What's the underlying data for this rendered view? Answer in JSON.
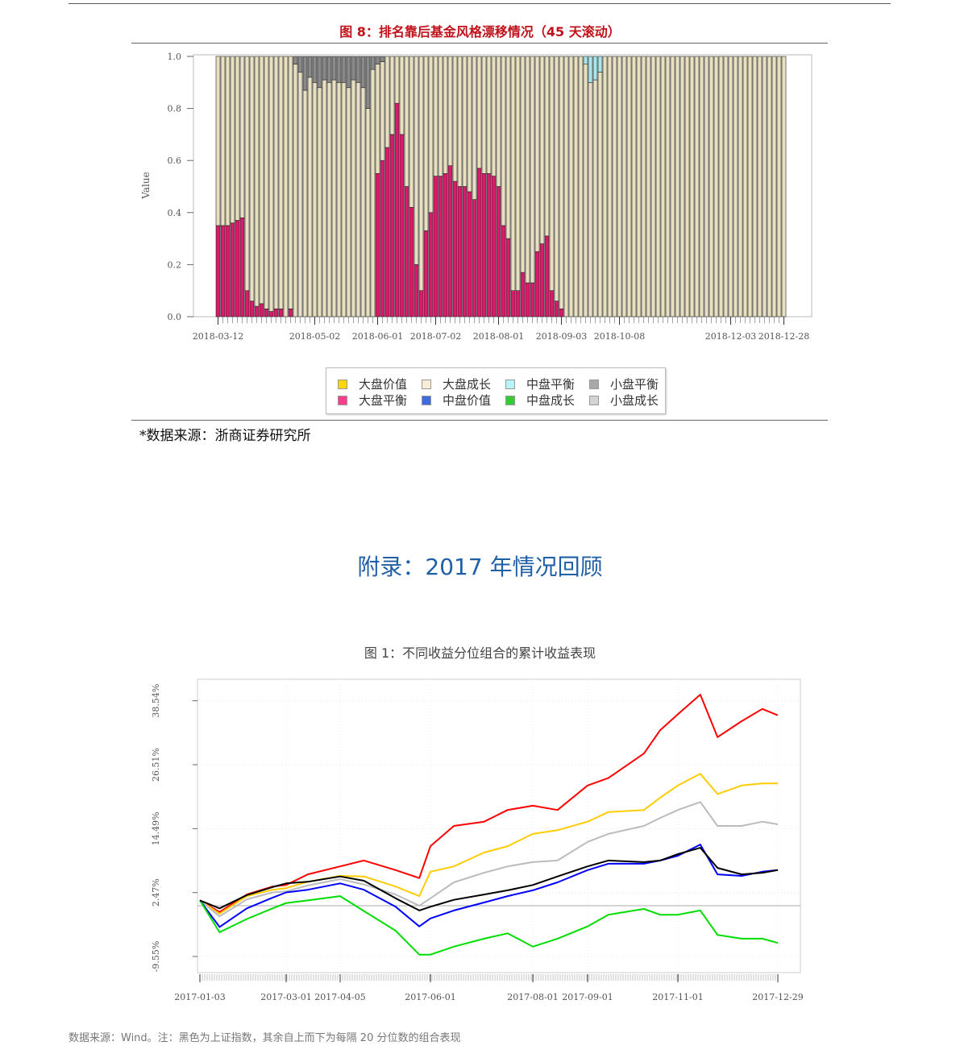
{
  "figure8": {
    "title": "图 8：排名靠后基金风格漂移情况（45 天滚动）",
    "source": "*数据来源：浙商证券研究所",
    "legend": [
      {
        "label": "大盘价值",
        "color": "#ffd700"
      },
      {
        "label": "大盘成长",
        "color": "#faebd7"
      },
      {
        "label": "中盘平衡",
        "color": "#b4f5f5"
      },
      {
        "label": "小盘平衡",
        "color": "#a9a9a9"
      },
      {
        "label": "大盘平衡",
        "color": "#ff3d8b"
      },
      {
        "label": "中盘价值",
        "color": "#4169e1"
      },
      {
        "label": "中盘成长",
        "color": "#32cd32"
      },
      {
        "label": "小盘成长",
        "color": "#d3d3d3"
      }
    ]
  },
  "chart_data": [
    {
      "type": "bar",
      "stacked": true,
      "ylabel": "Value",
      "ylim": [
        0,
        1
      ],
      "y_ticks": [
        "0.0",
        "0.2",
        "0.4",
        "0.6",
        "0.8",
        "1.0"
      ],
      "x_ticks": [
        {
          "label": "2018-03-12",
          "bar": 0
        },
        {
          "label": "2018-05-02",
          "bar": 20
        },
        {
          "label": "2018-06-01",
          "bar": 33
        },
        {
          "label": "2018-07-02",
          "bar": 45
        },
        {
          "label": "2018-08-01",
          "bar": 58
        },
        {
          "label": "2018-09-03",
          "bar": 71
        },
        {
          "label": "2018-10-08",
          "bar": 83
        },
        {
          "label": "2018-12-03",
          "bar": 106
        },
        {
          "label": "2018-12-28",
          "bar": 117
        }
      ],
      "series": [
        {
          "name": "大盘平衡",
          "color": "#d81b6a",
          "values": [
            0.35,
            0.35,
            0.35,
            0.36,
            0.37,
            0.38,
            0.1,
            0.06,
            0.04,
            0.05,
            0.03,
            0.02,
            0.03,
            0.03,
            0,
            0.03,
            0,
            0,
            0,
            0,
            0,
            0,
            0,
            0,
            0,
            0,
            0,
            0,
            0,
            0,
            0,
            0,
            0,
            0.55,
            0.6,
            0.65,
            0.7,
            0.82,
            0.7,
            0.5,
            0.42,
            0.2,
            0.1,
            0.33,
            0.4,
            0.54,
            0.54,
            0.55,
            0.58,
            0.52,
            0.5,
            0.5,
            0.48,
            0.45,
            0.57,
            0.55,
            0.55,
            0.54,
            0.5,
            0.35,
            0.3,
            0.1,
            0.1,
            0.17,
            0.13,
            0.13,
            0.25,
            0.28,
            0.31,
            0.1,
            0.06,
            0.03,
            0,
            0,
            0,
            0,
            0,
            0,
            0,
            0,
            0,
            0,
            0,
            0,
            0,
            0,
            0,
            0,
            0,
            0,
            0,
            0,
            0,
            0,
            0,
            0,
            0,
            0,
            0,
            0,
            0,
            0,
            0,
            0,
            0,
            0,
            0,
            0,
            0,
            0,
            0,
            0,
            0,
            0,
            0,
            0,
            0,
            0
          ]
        },
        {
          "name": "大盘成长",
          "color": "#e8e0c0",
          "values": "remainder"
        },
        {
          "name": "小盘平衡",
          "color": "#8a8a8a",
          "values": [
            0,
            0,
            0,
            0,
            0,
            0,
            0,
            0,
            0,
            0,
            0,
            0,
            0,
            0,
            0,
            0,
            0.03,
            0.06,
            0.13,
            0.08,
            0.1,
            0.12,
            0.09,
            0.1,
            0.09,
            0.1,
            0.1,
            0.12,
            0.09,
            0.1,
            0.12,
            0.2,
            0.05,
            0.03,
            0.02,
            0,
            0,
            0,
            0,
            0,
            0,
            0,
            0,
            0,
            0,
            0,
            0,
            0,
            0,
            0,
            0,
            0,
            0,
            0,
            0,
            0,
            0,
            0,
            0,
            0,
            0,
            0,
            0,
            0,
            0,
            0,
            0,
            0,
            0,
            0,
            0,
            0,
            0,
            0,
            0,
            0,
            0,
            0,
            0,
            0,
            0,
            0,
            0,
            0,
            0,
            0,
            0,
            0,
            0,
            0,
            0,
            0,
            0,
            0,
            0,
            0,
            0,
            0,
            0,
            0,
            0,
            0,
            0,
            0,
            0,
            0,
            0,
            0,
            0,
            0,
            0,
            0,
            0,
            0,
            0,
            0,
            0,
            0
          ]
        },
        {
          "name": "中盘平衡",
          "color": "#a8e6ea",
          "values": [
            0,
            0,
            0,
            0,
            0,
            0,
            0,
            0,
            0,
            0,
            0,
            0,
            0,
            0,
            0,
            0,
            0,
            0,
            0,
            0,
            0,
            0,
            0,
            0,
            0,
            0,
            0,
            0,
            0,
            0,
            0,
            0,
            0,
            0,
            0,
            0,
            0,
            0,
            0,
            0,
            0,
            0,
            0,
            0,
            0,
            0,
            0,
            0,
            0,
            0,
            0,
            0,
            0,
            0,
            0,
            0,
            0,
            0,
            0,
            0,
            0,
            0,
            0,
            0,
            0,
            0,
            0,
            0,
            0,
            0,
            0,
            0,
            0,
            0,
            0,
            0,
            0.03,
            0.1,
            0.09,
            0.06,
            0,
            0,
            0,
            0,
            0,
            0,
            0,
            0,
            0,
            0,
            0,
            0,
            0,
            0,
            0,
            0,
            0,
            0,
            0,
            0,
            0,
            0,
            0,
            0,
            0,
            0,
            0,
            0,
            0,
            0,
            0,
            0,
            0,
            0,
            0,
            0,
            0,
            0
          ]
        }
      ]
    },
    {
      "type": "line",
      "title": "图 1：不同收益分位组合的累计收益表现",
      "y_ticks": [
        "-9.55%",
        "2.47%",
        "14.49%",
        "26.51%",
        "38.54%"
      ],
      "y_tick_values": [
        -9.55,
        2.47,
        14.49,
        26.51,
        38.54
      ],
      "reference_line": 0,
      "x_ticks": [
        "2017-01-03",
        "2017-03-01",
        "2017-04-05",
        "2017-06-01",
        "2017-08-01",
        "2017-09-01",
        "2017-11-01",
        "2017-12-29"
      ],
      "x": [
        "2017-01-03",
        "2017-01-16",
        "2017-02-03",
        "2017-02-20",
        "2017-03-01",
        "2017-03-15",
        "2017-04-05",
        "2017-04-20",
        "2017-05-10",
        "2017-05-25",
        "2017-06-01",
        "2017-06-15",
        "2017-07-03",
        "2017-07-17",
        "2017-08-01",
        "2017-08-15",
        "2017-09-01",
        "2017-09-15",
        "2017-10-09",
        "2017-10-20",
        "2017-11-01",
        "2017-11-14",
        "2017-11-24",
        "2017-12-08",
        "2017-12-20",
        "2017-12-29"
      ],
      "series": [
        {
          "color": "#ff0000",
          "values": [
            1.0,
            -1.2,
            2.1,
            3.6,
            3.9,
            5.9,
            7.4,
            8.5,
            6.7,
            5.2,
            11.2,
            15,
            15.8,
            18,
            18.8,
            18,
            22.6,
            24,
            28.6,
            33,
            36,
            39.7,
            31.7,
            34.7,
            37,
            35.8
          ]
        },
        {
          "color": "#ffcc00",
          "values": [
            1.0,
            -1.5,
            1.8,
            3.0,
            3.3,
            4.5,
            5.6,
            5.5,
            3.6,
            1.8,
            6.4,
            7.4,
            10,
            11.2,
            13.5,
            14.2,
            15.8,
            17.6,
            18,
            20.3,
            22.6,
            24.8,
            21,
            22.6,
            23,
            23
          ]
        },
        {
          "color": "#bbbbbb",
          "values": [
            1.0,
            -2,
            1.2,
            2.5,
            2.7,
            3.8,
            5.0,
            4.0,
            2.1,
            0,
            1.4,
            4.4,
            6.2,
            7.4,
            8.2,
            8.5,
            12,
            13.5,
            15,
            16.5,
            18,
            19.5,
            15,
            15,
            15.8,
            15.3
          ]
        },
        {
          "color": "#0000ff",
          "values": [
            1.0,
            -4,
            -0.5,
            1.5,
            2.5,
            3.0,
            4.2,
            3.0,
            -0.2,
            -3.9,
            -2.4,
            -0.9,
            0.6,
            1.8,
            2.9,
            4.4,
            6.7,
            7.9,
            7.9,
            8.5,
            9.4,
            11.5,
            5.9,
            5.6,
            6.4,
            6.7
          ]
        },
        {
          "color": "#00dd00",
          "values": [
            1.0,
            -5,
            -2.5,
            -0.5,
            0.5,
            1.0,
            1.8,
            -1,
            -4.7,
            -9.2,
            -9.2,
            -7.7,
            -6.2,
            -5.2,
            -7.7,
            -6.2,
            -3.9,
            -1.7,
            -0.6,
            -1.7,
            -1.7,
            -0.9,
            -5.5,
            -6.2,
            -6.2,
            -7
          ]
        },
        {
          "color": "#000000",
          "values": [
            1.0,
            -0.5,
            2.0,
            3.5,
            4.2,
            4.5,
            5.5,
            4.7,
            1.4,
            -0.9,
            -0.2,
            1.1,
            2.1,
            2.9,
            3.9,
            5.5,
            7.4,
            8.5,
            8.2,
            8.5,
            9.7,
            10.9,
            7.1,
            5.9,
            6.2,
            6.7
          ]
        }
      ]
    }
  ],
  "appendix": {
    "heading": "附录：2017 年情况回顾"
  },
  "footnote": "数据来源：Wind。注：黑色为上证指数，其余自上而下为每隔 20 分位数的组合表现"
}
